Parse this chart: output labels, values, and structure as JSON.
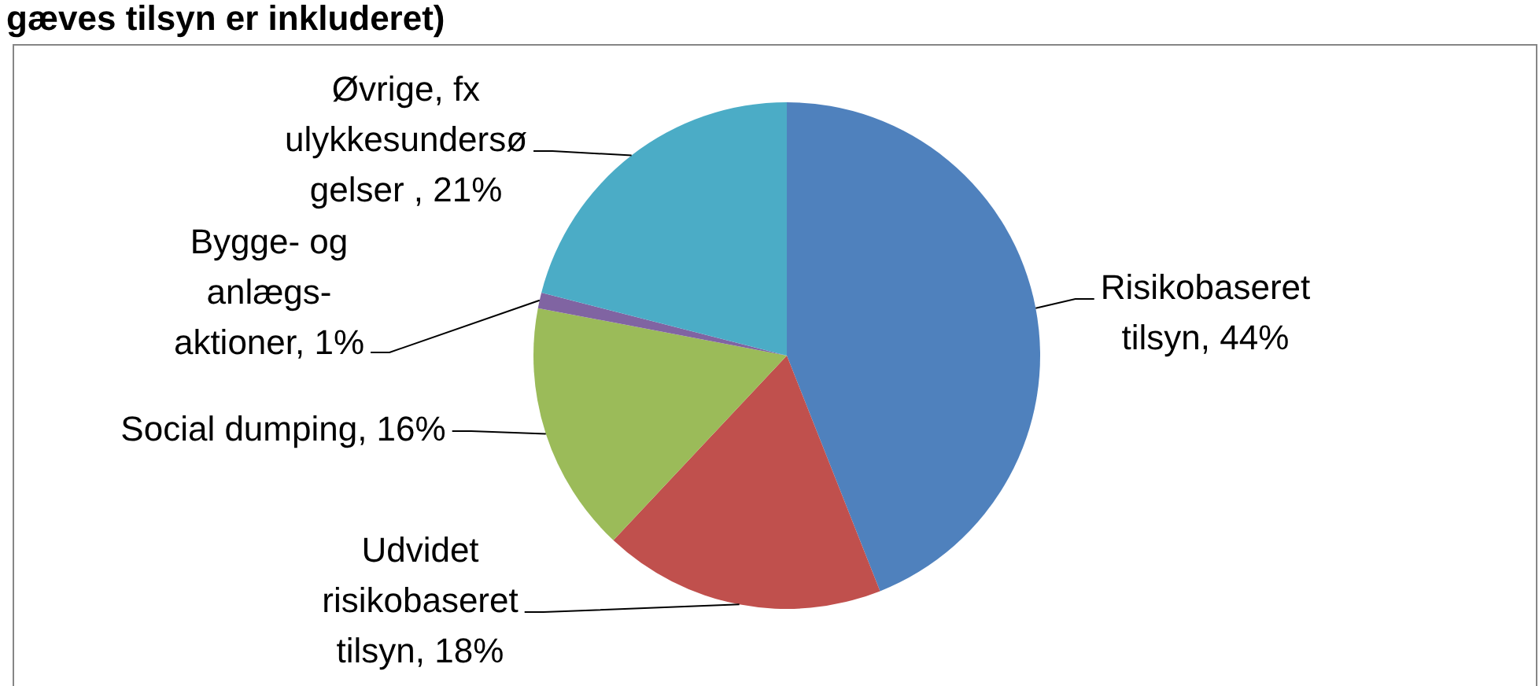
{
  "chart_data": {
    "type": "pie",
    "title": "gæves tilsyn er inkluderet)",
    "categories": [
      "Risikobaseret tilsyn",
      "Udvidet risikobaseret tilsyn",
      "Social dumping",
      "Bygge- og anlægs-aktioner",
      "Øvrige, fx ulykkesundersøgelser "
    ],
    "values": [
      44,
      18,
      16,
      1,
      21
    ],
    "colors": [
      "#4f81bd",
      "#c0504d",
      "#9bbb59",
      "#8064a2",
      "#4bacc6"
    ],
    "value_labels": [
      "44%",
      "18%",
      "16%",
      "1%",
      "21%"
    ]
  }
}
